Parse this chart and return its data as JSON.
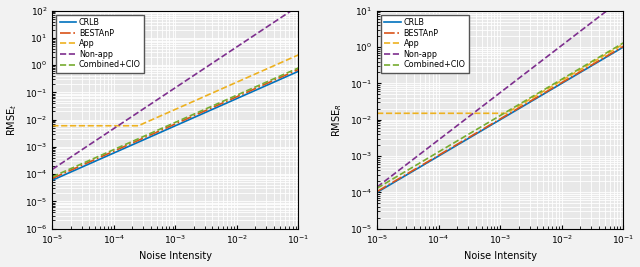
{
  "xlim": [
    1e-05,
    0.1
  ],
  "left_ylim": [
    1e-06,
    100.0
  ],
  "right_ylim": [
    1e-05,
    10.0
  ],
  "xlabel": "Noise Intensity",
  "left_ylabel": "RMSE$_t$",
  "right_ylabel": "RMSE$_R$",
  "legend_labels": [
    "CRLB",
    "BESTAnP",
    "App",
    "Non-app",
    "Combined+CIO"
  ],
  "line_colors": [
    "#0072BD",
    "#D95319",
    "#EDB120",
    "#7E2F8E",
    "#77AC30"
  ],
  "line_styles": [
    "-",
    "-.",
    "--",
    "--",
    "--"
  ],
  "line_widths": [
    1.2,
    1.2,
    1.2,
    1.2,
    1.2
  ],
  "background_color": "#e8e8e8",
  "grid_color": "#ffffff",
  "fig_facecolor": "#f2f2f2"
}
